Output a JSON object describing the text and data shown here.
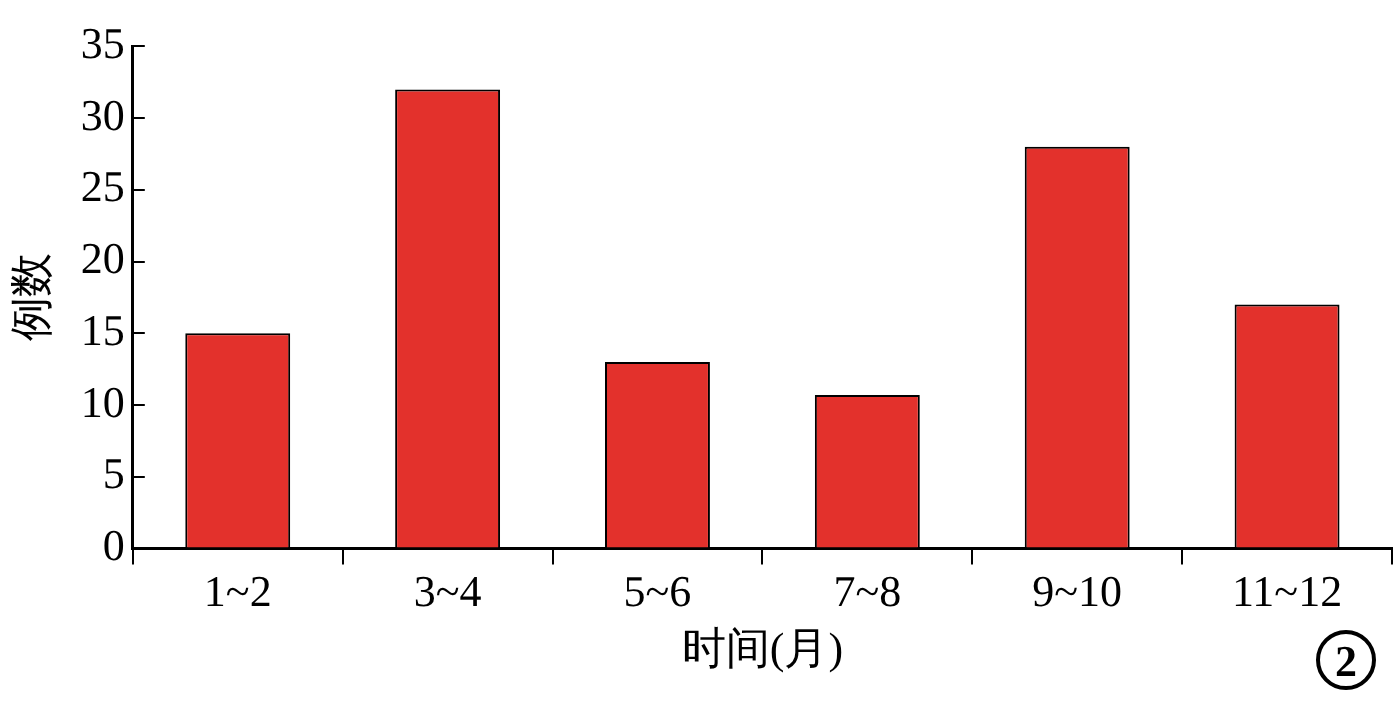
{
  "chart_data": {
    "type": "bar",
    "xlabel": "时间(月)",
    "ylabel": "例数",
    "categories": [
      "1~2",
      "3~4",
      "5~6",
      "7~8",
      "9~10",
      "11~12"
    ],
    "values": [
      15,
      32,
      13,
      10.7,
      28,
      17
    ],
    "color": "#e3312c",
    "ylim": [
      0,
      35
    ],
    "yticks": [
      0,
      5,
      10,
      15,
      20,
      25,
      30,
      35
    ],
    "grid": false,
    "legend": false,
    "annotations": [
      "2"
    ]
  }
}
